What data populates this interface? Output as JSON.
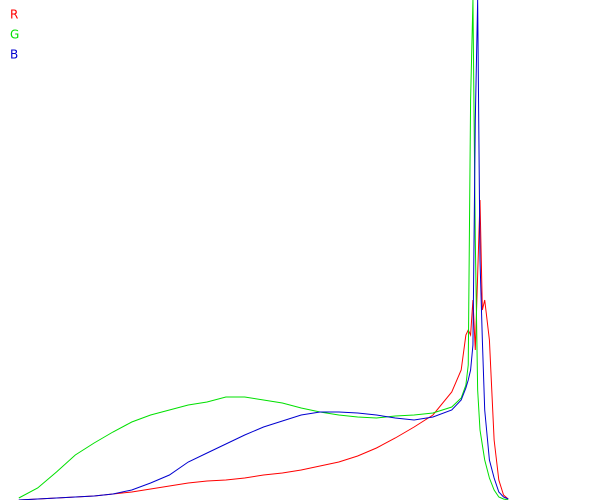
{
  "chart_data": {
    "type": "line",
    "legend": "top-left",
    "xlim": [
      0,
      255
    ],
    "ylim": [
      0,
      500
    ],
    "x": [
      8,
      16,
      24,
      32,
      40,
      48,
      56,
      64,
      72,
      80,
      88,
      96,
      104,
      112,
      120,
      128,
      136,
      144,
      152,
      160,
      168,
      176,
      184,
      192,
      196,
      198,
      199,
      200,
      201,
      202,
      203,
      204,
      205,
      206,
      208,
      210,
      212,
      214,
      216
    ],
    "series": [
      {
        "name": "R",
        "color": "#ff0000",
        "values": [
          0,
          1,
          2,
          3,
          4,
          6,
          8,
          11,
          14,
          17,
          19,
          20,
          22,
          25,
          27,
          30,
          34,
          38,
          44,
          52,
          62,
          73,
          85,
          108,
          130,
          165,
          170,
          165,
          200,
          150,
          225,
          300,
          190,
          200,
          160,
          60,
          20,
          5,
          1
        ]
      },
      {
        "name": "G",
        "color": "#00e000",
        "values": [
          2,
          12,
          28,
          45,
          57,
          68,
          78,
          85,
          90,
          95,
          98,
          103,
          103,
          100,
          97,
          92,
          88,
          85,
          83,
          82,
          84,
          85,
          87,
          93,
          102,
          115,
          135,
          400,
          500,
          260,
          110,
          70,
          55,
          40,
          22,
          10,
          3,
          1,
          0
        ]
      },
      {
        "name": "B",
        "color": "#0000d0",
        "values": [
          0,
          1,
          2,
          3,
          4,
          6,
          10,
          17,
          25,
          38,
          47,
          56,
          65,
          73,
          79,
          85,
          88,
          88,
          87,
          85,
          82,
          80,
          83,
          90,
          100,
          112,
          120,
          130,
          155,
          380,
          500,
          240,
          160,
          90,
          40,
          22,
          8,
          3,
          1
        ]
      }
    ]
  }
}
